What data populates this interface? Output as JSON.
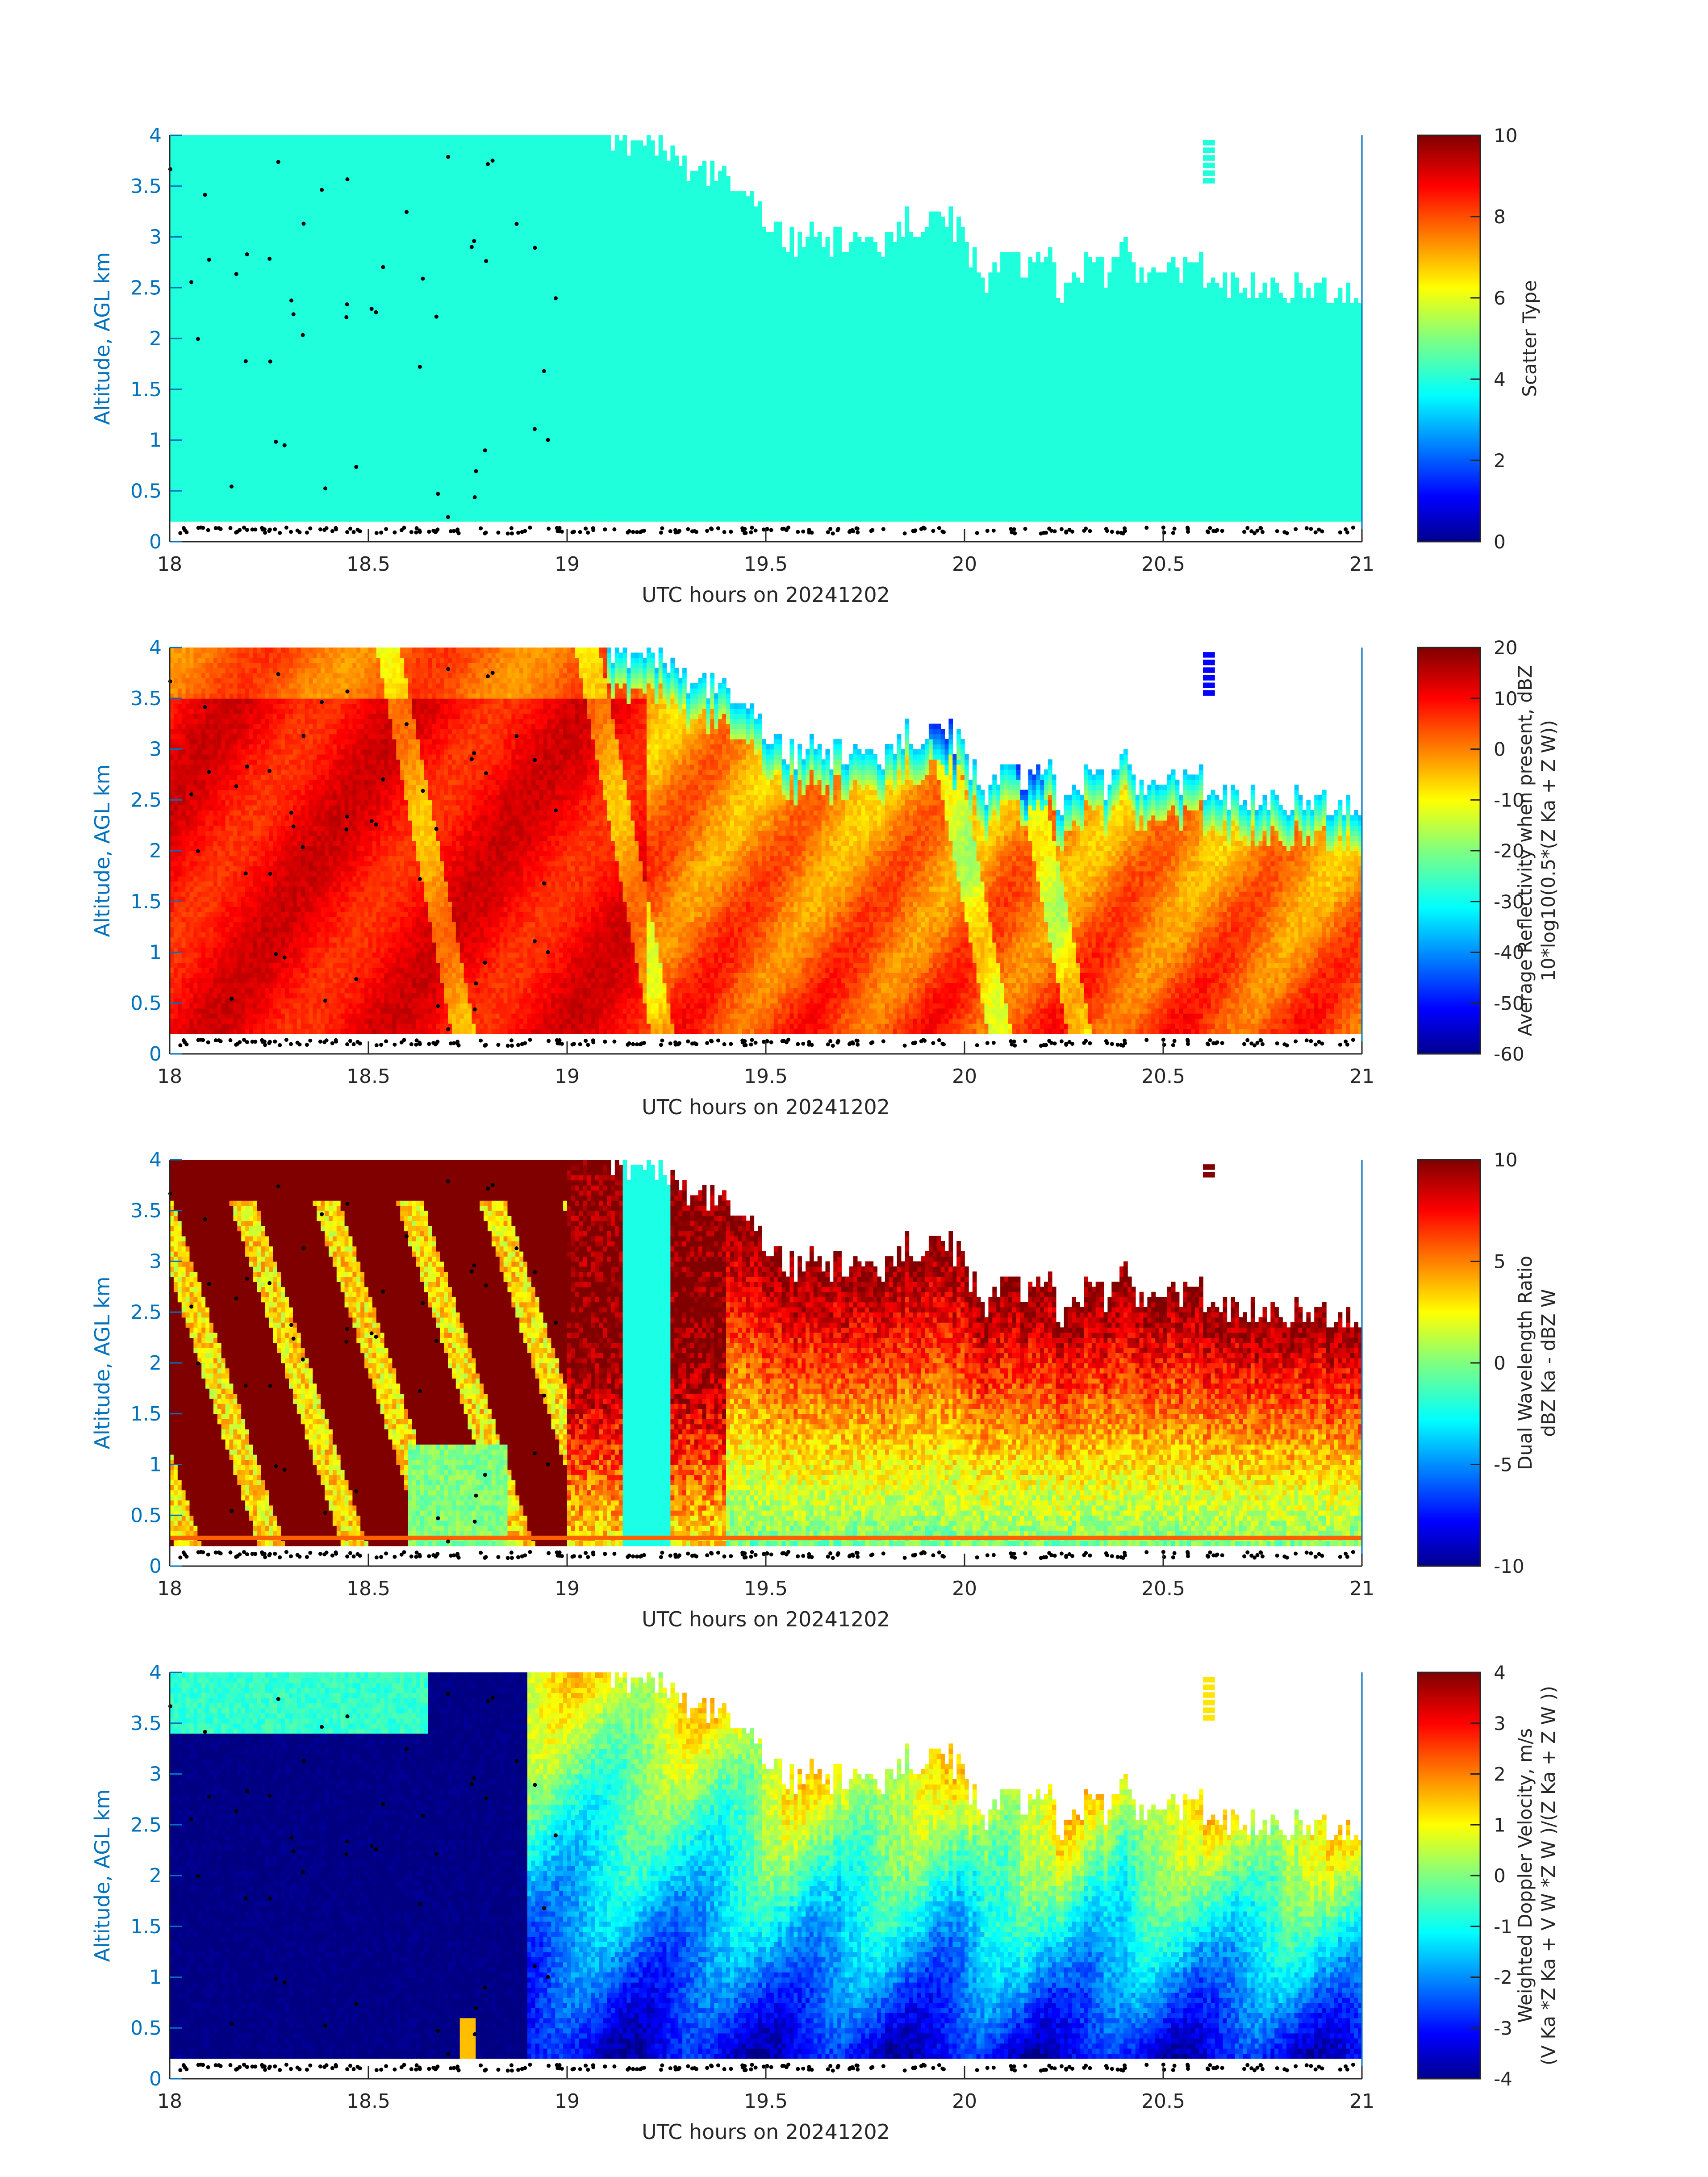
{
  "figure": {
    "panels": [
      {
        "id": "scatter",
        "xlabel": "UTC hours on 20241202",
        "ylabel": "Altitude, AGL km",
        "cbar_label_lines": [
          "Scatter Type"
        ],
        "cbar_ticks": [
          "0",
          "2",
          "4",
          "6",
          "8",
          "10"
        ],
        "cbar_range": [
          0,
          10
        ]
      },
      {
        "id": "reflectivity",
        "xlabel": "UTC hours on 20241202",
        "ylabel": "Altitude, AGL km",
        "cbar_label_lines": [
          "Average Reflectivity when present, dBZ",
          "10*log10(0.5*(Z Ka + Z W))"
        ],
        "cbar_ticks": [
          "-60",
          "-50",
          "-40",
          "-30",
          "-20",
          "-10",
          "0",
          "10",
          "20"
        ],
        "cbar_range": [
          -60,
          20
        ]
      },
      {
        "id": "dwr",
        "xlabel": "UTC hours on 20241202",
        "ylabel": "Altitude, AGL km",
        "cbar_label_lines": [
          "Dual Wavelength Ratio",
          "dBZ Ka - dBZ W"
        ],
        "cbar_ticks": [
          "-10",
          "-5",
          "0",
          "5",
          "10"
        ],
        "cbar_range": [
          -10,
          10
        ]
      },
      {
        "id": "velocity",
        "xlabel": "UTC hours on 20241202",
        "ylabel": "Altitude, AGL km",
        "cbar_label_lines": [
          "Weighted Doppler Velocity, m/s",
          "(V Ka *Z Ka + V W *Z W )/(Z Ka + Z W ))"
        ],
        "cbar_ticks": [
          "-4",
          "-3",
          "-2",
          "-1",
          "0",
          "1",
          "2",
          "3",
          "4"
        ],
        "cbar_range": [
          -4,
          4
        ]
      }
    ],
    "x_ticks": [
      "18",
      "18.5",
      "19",
      "19.5",
      "20",
      "20.5",
      "21"
    ],
    "y_ticks": [
      "0",
      "0.5",
      "1",
      "1.5",
      "2",
      "2.5",
      "3",
      "3.5",
      "4"
    ],
    "colors": {
      "axis_label_blue": "#0072bd",
      "scatter_fill": "#1fffdc",
      "colormap": "jet"
    }
  },
  "chart_data": [
    {
      "type": "heatmap",
      "variable": "Scatter Type",
      "xlabel": "UTC hours on 20241202",
      "ylabel": "Altitude, AGL km",
      "xlim": [
        18,
        21
      ],
      "ylim": [
        0,
        4
      ],
      "clim": [
        0,
        10
      ],
      "colormap": "jet",
      "uniform_value": 3.9,
      "cloud_base_km": 0.2,
      "cloud_top": {
        "x": [
          18.0,
          19.12,
          19.18,
          19.22,
          19.26,
          19.3,
          19.35,
          19.4,
          19.45,
          19.5,
          19.55,
          19.6,
          19.7,
          19.8,
          19.85,
          19.9,
          19.95,
          20.0,
          20.05,
          20.1,
          20.15,
          20.2,
          20.25,
          20.3,
          20.35,
          20.4,
          20.45,
          20.5,
          20.55,
          20.6,
          20.65,
          20.7,
          20.75,
          20.8,
          20.9,
          21.0
        ],
        "y": [
          4.0,
          4.0,
          3.85,
          3.95,
          3.75,
          3.7,
          3.6,
          3.65,
          3.45,
          3.1,
          2.95,
          2.95,
          3.0,
          2.9,
          3.2,
          3.1,
          3.2,
          3.05,
          2.4,
          3.0,
          2.6,
          2.9,
          2.4,
          2.7,
          2.6,
          2.9,
          2.5,
          2.7,
          2.6,
          2.7,
          2.6,
          2.5,
          2.55,
          2.5,
          2.5,
          2.45
        ]
      },
      "isolated_echo": {
        "x": [
          20.6,
          20.63
        ],
        "y": [
          3.5,
          3.95
        ]
      }
    },
    {
      "type": "heatmap",
      "variable": "Average Reflectivity when present, dBZ",
      "xlabel": "UTC hours on 20241202",
      "ylabel": "Altitude, AGL km",
      "xlim": [
        18,
        21
      ],
      "ylim": [
        0,
        4
      ],
      "clim": [
        -60,
        20
      ],
      "colormap": "jet",
      "typical_dBZ": {
        "18-19.2 below 3.5 km": 10,
        "18-19.2 above 3.5 km": 2,
        "19.3-21 low levels": 5,
        "cloud top edge": -35
      },
      "lines_of_low_dBZ_near_x": [
        18.75,
        19.25,
        20.1,
        20.3
      ]
    },
    {
      "type": "heatmap",
      "variable": "Dual Wavelength Ratio",
      "xlabel": "UTC hours on 20241202",
      "ylabel": "Altitude, AGL km",
      "xlim": [
        18,
        21
      ],
      "ylim": [
        0,
        4
      ],
      "clim": [
        -10,
        10
      ],
      "colormap": "jet",
      "typical_DWR": {
        "18-19 saturated": 10,
        "after 19.4 low levels": 1,
        "after 19.4 upper levels": 8
      }
    },
    {
      "type": "heatmap",
      "variable": "Weighted Doppler Velocity, m/s",
      "xlabel": "UTC hours on 20241202",
      "ylabel": "Altitude, AGL km",
      "xlim": [
        18,
        21
      ],
      "ylim": [
        0,
        4
      ],
      "clim": [
        -4,
        4
      ],
      "colormap": "jet",
      "typical_velocity": {
        "18-18.9 below 3.4 km": -4,
        "18-18.6 above 3.4 km": -0.5,
        "after 19.4 near cloud top": 1,
        "after 19.4 lower levels": -2.5
      }
    }
  ]
}
